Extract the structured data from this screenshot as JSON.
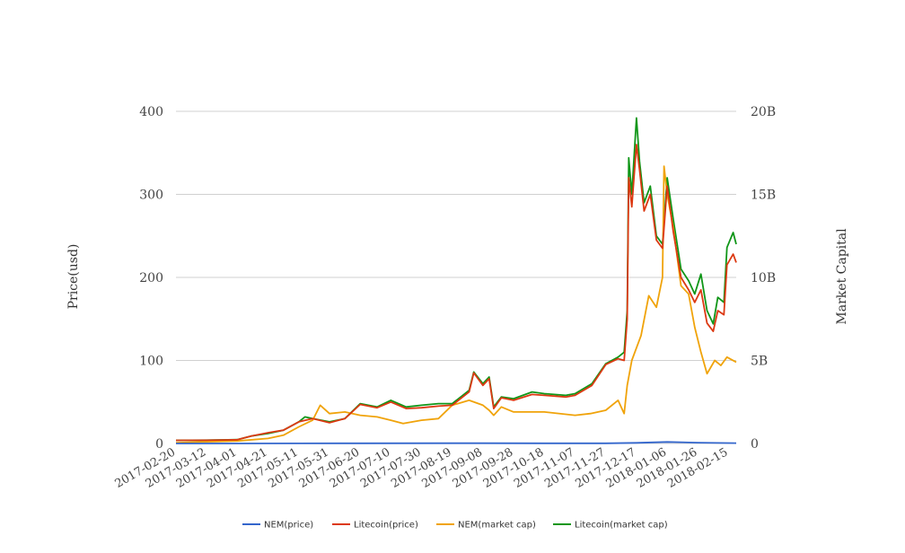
{
  "chart_data": {
    "type": "line",
    "title": "",
    "ylabel_left": "Price(usd)",
    "ylabel_right": "Market Capital",
    "left_axis": {
      "ylim": [
        0,
        400
      ],
      "ticks": [
        "0",
        "100",
        "200",
        "300",
        "400"
      ]
    },
    "right_axis": {
      "ylim": [
        0,
        20
      ],
      "unit": "B",
      "ticks": [
        "0",
        "5B",
        "10B",
        "15B",
        "20B"
      ]
    },
    "x_ticks": [
      "2017-02-20",
      "2017-03-12",
      "2017-04-01",
      "2017-04-21",
      "2017-05-11",
      "2017-05-31",
      "2017-06-20",
      "2017-07-10",
      "2017-07-30",
      "2017-08-19",
      "2017-09-08",
      "2017-09-28",
      "2017-10-18",
      "2017-11-07",
      "2017-11-27",
      "2017-12-17",
      "2018-01-06",
      "2018-01-26",
      "2018-02-15"
    ],
    "x_range": [
      "2017-02-20",
      "2018-02-20"
    ],
    "grid": true,
    "legend_position": "bottom-center",
    "series": [
      {
        "name": "NEM(price)",
        "axis": "left",
        "color": "#3366cc",
        "points": [
          [
            "2017-02-20",
            0.01
          ],
          [
            "2017-04-01",
            0.01
          ],
          [
            "2017-05-11",
            0.15
          ],
          [
            "2017-06-20",
            0.25
          ],
          [
            "2017-08-19",
            0.3
          ],
          [
            "2017-09-08",
            0.3
          ],
          [
            "2017-10-18",
            0.2
          ],
          [
            "2017-11-27",
            0.22
          ],
          [
            "2017-12-17",
            0.8
          ],
          [
            "2018-01-06",
            1.8
          ],
          [
            "2018-01-26",
            1.0
          ],
          [
            "2018-02-20",
            0.4
          ]
        ]
      },
      {
        "name": "Litecoin(price)",
        "axis": "left",
        "color": "#dc3912",
        "points": [
          [
            "2017-02-20",
            3.8
          ],
          [
            "2017-03-12",
            3.9
          ],
          [
            "2017-04-01",
            4.5
          ],
          [
            "2017-04-10",
            9
          ],
          [
            "2017-04-21",
            13
          ],
          [
            "2017-05-01",
            16
          ],
          [
            "2017-05-11",
            26
          ],
          [
            "2017-05-20",
            30
          ],
          [
            "2017-05-31",
            25
          ],
          [
            "2017-06-10",
            30
          ],
          [
            "2017-06-20",
            47
          ],
          [
            "2017-07-01",
            43
          ],
          [
            "2017-07-10",
            50
          ],
          [
            "2017-07-20",
            42
          ],
          [
            "2017-07-30",
            43
          ],
          [
            "2017-08-10",
            45
          ],
          [
            "2017-08-19",
            46
          ],
          [
            "2017-08-30",
            62
          ],
          [
            "2017-09-02",
            85
          ],
          [
            "2017-09-08",
            70
          ],
          [
            "2017-09-12",
            78
          ],
          [
            "2017-09-15",
            42
          ],
          [
            "2017-09-20",
            55
          ],
          [
            "2017-09-28",
            52
          ],
          [
            "2017-10-10",
            59
          ],
          [
            "2017-10-18",
            58
          ],
          [
            "2017-11-01",
            56
          ],
          [
            "2017-11-07",
            58
          ],
          [
            "2017-11-18",
            70
          ],
          [
            "2017-11-27",
            95
          ],
          [
            "2017-12-05",
            102
          ],
          [
            "2017-12-09",
            100
          ],
          [
            "2017-12-11",
            150
          ],
          [
            "2017-12-12",
            320
          ],
          [
            "2017-12-14",
            285
          ],
          [
            "2017-12-17",
            360
          ],
          [
            "2017-12-19",
            330
          ],
          [
            "2017-12-22",
            280
          ],
          [
            "2017-12-26",
            300
          ],
          [
            "2017-12-30",
            245
          ],
          [
            "2018-01-03",
            235
          ],
          [
            "2018-01-06",
            310
          ],
          [
            "2018-01-10",
            255
          ],
          [
            "2018-01-15",
            200
          ],
          [
            "2018-01-20",
            185
          ],
          [
            "2018-01-24",
            170
          ],
          [
            "2018-01-28",
            185
          ],
          [
            "2018-02-01",
            145
          ],
          [
            "2018-02-05",
            135
          ],
          [
            "2018-02-08",
            160
          ],
          [
            "2018-02-12",
            155
          ],
          [
            "2018-02-14",
            215
          ],
          [
            "2018-02-18",
            228
          ],
          [
            "2018-02-20",
            218
          ]
        ]
      },
      {
        "name": "NEM(market cap)",
        "axis": "right",
        "color": "#f0a30a",
        "points": [
          [
            "2017-02-20",
            0.05
          ],
          [
            "2017-03-12",
            0.1
          ],
          [
            "2017-04-01",
            0.15
          ],
          [
            "2017-04-21",
            0.3
          ],
          [
            "2017-05-01",
            0.5
          ],
          [
            "2017-05-11",
            1.0
          ],
          [
            "2017-05-20",
            1.4
          ],
          [
            "2017-05-25",
            2.3
          ],
          [
            "2017-05-31",
            1.8
          ],
          [
            "2017-06-10",
            1.9
          ],
          [
            "2017-06-20",
            1.7
          ],
          [
            "2017-07-01",
            1.6
          ],
          [
            "2017-07-10",
            1.4
          ],
          [
            "2017-07-18",
            1.2
          ],
          [
            "2017-07-30",
            1.4
          ],
          [
            "2017-08-10",
            1.5
          ],
          [
            "2017-08-19",
            2.3
          ],
          [
            "2017-08-30",
            2.6
          ],
          [
            "2017-09-08",
            2.3
          ],
          [
            "2017-09-12",
            2.0
          ],
          [
            "2017-09-15",
            1.7
          ],
          [
            "2017-09-20",
            2.2
          ],
          [
            "2017-09-28",
            1.9
          ],
          [
            "2017-10-18",
            1.9
          ],
          [
            "2017-11-07",
            1.7
          ],
          [
            "2017-11-17",
            1.8
          ],
          [
            "2017-11-27",
            2.0
          ],
          [
            "2017-12-05",
            2.6
          ],
          [
            "2017-12-09",
            1.8
          ],
          [
            "2017-12-11",
            3.5
          ],
          [
            "2017-12-14",
            5.0
          ],
          [
            "2017-12-20",
            6.5
          ],
          [
            "2017-12-25",
            8.9
          ],
          [
            "2017-12-30",
            8.2
          ],
          [
            "2018-01-03",
            10.0
          ],
          [
            "2018-01-04",
            16.7
          ],
          [
            "2018-01-06",
            15.0
          ],
          [
            "2018-01-10",
            13.0
          ],
          [
            "2018-01-15",
            9.5
          ],
          [
            "2018-01-20",
            9.0
          ],
          [
            "2018-01-24",
            7.0
          ],
          [
            "2018-01-28",
            5.5
          ],
          [
            "2018-02-01",
            4.2
          ],
          [
            "2018-02-06",
            5.0
          ],
          [
            "2018-02-10",
            4.7
          ],
          [
            "2018-02-14",
            5.2
          ],
          [
            "2018-02-20",
            4.9
          ]
        ]
      },
      {
        "name": "Litecoin(market cap)",
        "axis": "right",
        "color": "#109618",
        "points": [
          [
            "2017-02-20",
            0.19
          ],
          [
            "2017-03-12",
            0.2
          ],
          [
            "2017-04-01",
            0.23
          ],
          [
            "2017-04-10",
            0.45
          ],
          [
            "2017-04-21",
            0.6
          ],
          [
            "2017-05-01",
            0.8
          ],
          [
            "2017-05-11",
            1.3
          ],
          [
            "2017-05-15",
            1.6
          ],
          [
            "2017-05-20",
            1.5
          ],
          [
            "2017-05-31",
            1.3
          ],
          [
            "2017-06-10",
            1.5
          ],
          [
            "2017-06-20",
            2.4
          ],
          [
            "2017-07-01",
            2.2
          ],
          [
            "2017-07-10",
            2.6
          ],
          [
            "2017-07-20",
            2.2
          ],
          [
            "2017-07-30",
            2.3
          ],
          [
            "2017-08-10",
            2.4
          ],
          [
            "2017-08-19",
            2.4
          ],
          [
            "2017-08-30",
            3.2
          ],
          [
            "2017-09-02",
            4.3
          ],
          [
            "2017-09-08",
            3.6
          ],
          [
            "2017-09-12",
            4.0
          ],
          [
            "2017-09-15",
            2.2
          ],
          [
            "2017-09-20",
            2.8
          ],
          [
            "2017-09-28",
            2.7
          ],
          [
            "2017-10-10",
            3.1
          ],
          [
            "2017-10-18",
            3.0
          ],
          [
            "2017-11-01",
            2.9
          ],
          [
            "2017-11-07",
            3.0
          ],
          [
            "2017-11-18",
            3.6
          ],
          [
            "2017-11-27",
            4.8
          ],
          [
            "2017-12-05",
            5.2
          ],
          [
            "2017-12-09",
            5.5
          ],
          [
            "2017-12-11",
            8.0
          ],
          [
            "2017-12-12",
            17.2
          ],
          [
            "2017-12-14",
            15.0
          ],
          [
            "2017-12-17",
            19.6
          ],
          [
            "2017-12-19",
            17.0
          ],
          [
            "2017-12-22",
            14.5
          ],
          [
            "2017-12-26",
            15.5
          ],
          [
            "2017-12-30",
            12.5
          ],
          [
            "2018-01-03",
            12.0
          ],
          [
            "2018-01-06",
            16.0
          ],
          [
            "2018-01-10",
            13.5
          ],
          [
            "2018-01-15",
            10.5
          ],
          [
            "2018-01-20",
            9.8
          ],
          [
            "2018-01-24",
            9.0
          ],
          [
            "2018-01-28",
            10.2
          ],
          [
            "2018-02-01",
            8.0
          ],
          [
            "2018-02-05",
            7.2
          ],
          [
            "2018-02-08",
            8.8
          ],
          [
            "2018-02-12",
            8.5
          ],
          [
            "2018-02-14",
            11.8
          ],
          [
            "2018-02-18",
            12.7
          ],
          [
            "2018-02-20",
            12.0
          ]
        ]
      }
    ]
  }
}
